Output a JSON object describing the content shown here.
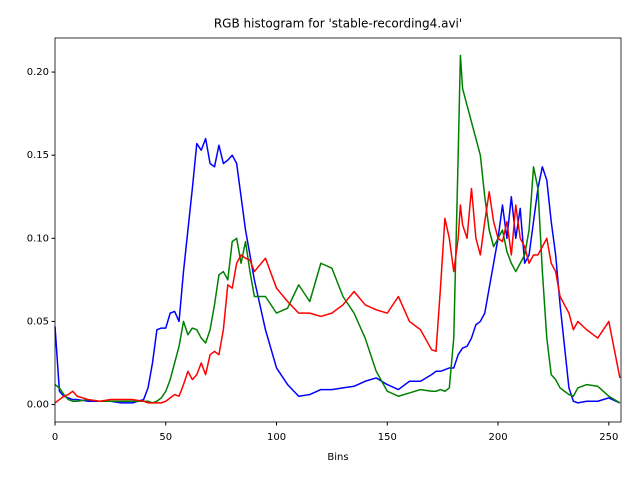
{
  "chart_data": {
    "type": "line",
    "title": "RGB histogram for 'stable-recording4.avi'",
    "xlabel": "Bins",
    "x": [
      0,
      2,
      4,
      6,
      8,
      10,
      15,
      20,
      25,
      30,
      35,
      40,
      42,
      44,
      46,
      48,
      50,
      52,
      54,
      56,
      58,
      60,
      62,
      64,
      66,
      68,
      70,
      72,
      74,
      76,
      78,
      80,
      82,
      84,
      86,
      88,
      90,
      95,
      100,
      105,
      110,
      115,
      120,
      125,
      130,
      135,
      140,
      145,
      150,
      155,
      160,
      165,
      170,
      172,
      174,
      176,
      178,
      180,
      182,
      183,
      184,
      186,
      188,
      190,
      192,
      194,
      196,
      198,
      200,
      202,
      204,
      206,
      208,
      210,
      212,
      214,
      216,
      218,
      220,
      222,
      224,
      226,
      228,
      230,
      232,
      234,
      236,
      240,
      245,
      250,
      255
    ],
    "series": [
      {
        "name": "b",
        "color": "#0000ff",
        "values": [
          0.047,
          0.008,
          0.005,
          0.004,
          0.003,
          0.003,
          0.002,
          0.002,
          0.002,
          0.001,
          0.001,
          0.003,
          0.01,
          0.025,
          0.045,
          0.046,
          0.046,
          0.055,
          0.056,
          0.05,
          0.08,
          0.105,
          0.13,
          0.157,
          0.153,
          0.16,
          0.145,
          0.143,
          0.156,
          0.145,
          0.147,
          0.15,
          0.145,
          0.125,
          0.105,
          0.09,
          0.075,
          0.045,
          0.022,
          0.012,
          0.005,
          0.006,
          0.009,
          0.009,
          0.01,
          0.011,
          0.014,
          0.016,
          0.012,
          0.009,
          0.014,
          0.014,
          0.018,
          0.02,
          0.02,
          0.021,
          0.022,
          0.022,
          0.03,
          0.032,
          0.034,
          0.035,
          0.04,
          0.048,
          0.05,
          0.055,
          0.07,
          0.085,
          0.1,
          0.12,
          0.1,
          0.125,
          0.1,
          0.118,
          0.085,
          0.09,
          0.11,
          0.13,
          0.143,
          0.135,
          0.11,
          0.09,
          0.06,
          0.035,
          0.01,
          0.002,
          0.001,
          0.002,
          0.002,
          0.004,
          0.001
        ]
      },
      {
        "name": "g",
        "color": "#008000",
        "values": [
          0.012,
          0.01,
          0.006,
          0.003,
          0.002,
          0.002,
          0.003,
          0.002,
          0.002,
          0.002,
          0.002,
          0.002,
          0.002,
          0.001,
          0.002,
          0.004,
          0.008,
          0.015,
          0.025,
          0.035,
          0.05,
          0.042,
          0.046,
          0.045,
          0.04,
          0.037,
          0.045,
          0.06,
          0.078,
          0.08,
          0.075,
          0.098,
          0.1,
          0.085,
          0.098,
          0.08,
          0.065,
          0.065,
          0.055,
          0.058,
          0.072,
          0.062,
          0.085,
          0.082,
          0.065,
          0.055,
          0.04,
          0.02,
          0.008,
          0.005,
          0.007,
          0.009,
          0.008,
          0.008,
          0.009,
          0.008,
          0.01,
          0.04,
          0.15,
          0.21,
          0.19,
          0.18,
          0.17,
          0.16,
          0.15,
          0.125,
          0.105,
          0.095,
          0.1,
          0.105,
          0.092,
          0.085,
          0.08,
          0.085,
          0.09,
          0.105,
          0.143,
          0.13,
          0.08,
          0.04,
          0.018,
          0.015,
          0.01,
          0.008,
          0.006,
          0.005,
          0.01,
          0.012,
          0.011,
          0.005,
          0.001
        ]
      },
      {
        "name": "r",
        "color": "#ff0000",
        "values": [
          0.001,
          0.003,
          0.005,
          0.006,
          0.008,
          0.005,
          0.003,
          0.002,
          0.003,
          0.003,
          0.003,
          0.002,
          0.001,
          0.001,
          0.001,
          0.001,
          0.002,
          0.004,
          0.006,
          0.005,
          0.012,
          0.02,
          0.015,
          0.018,
          0.025,
          0.018,
          0.03,
          0.032,
          0.03,
          0.045,
          0.072,
          0.07,
          0.085,
          0.09,
          0.088,
          0.087,
          0.08,
          0.088,
          0.07,
          0.062,
          0.055,
          0.055,
          0.053,
          0.055,
          0.06,
          0.068,
          0.06,
          0.057,
          0.055,
          0.065,
          0.05,
          0.045,
          0.033,
          0.032,
          0.07,
          0.112,
          0.1,
          0.08,
          0.1,
          0.12,
          0.108,
          0.1,
          0.13,
          0.1,
          0.09,
          0.11,
          0.128,
          0.11,
          0.1,
          0.098,
          0.11,
          0.09,
          0.12,
          0.1,
          0.095,
          0.085,
          0.09,
          0.09,
          0.095,
          0.1,
          0.085,
          0.08,
          0.065,
          0.06,
          0.055,
          0.045,
          0.05,
          0.045,
          0.04,
          0.05,
          0.016
        ]
      }
    ],
    "xlim": [
      0,
      255.5
    ],
    "ylim": [
      -0.0105,
      0.2205
    ],
    "xticks": [
      0,
      50,
      100,
      150,
      200,
      250
    ],
    "yticks": [
      {
        "value": 0,
        "label": "0.00"
      },
      {
        "value": 0.05,
        "label": "0.05"
      },
      {
        "value": 0.1,
        "label": "0.10"
      },
      {
        "value": 0.15,
        "label": "0.15"
      },
      {
        "value": 0.2,
        "label": "0.20"
      }
    ]
  }
}
